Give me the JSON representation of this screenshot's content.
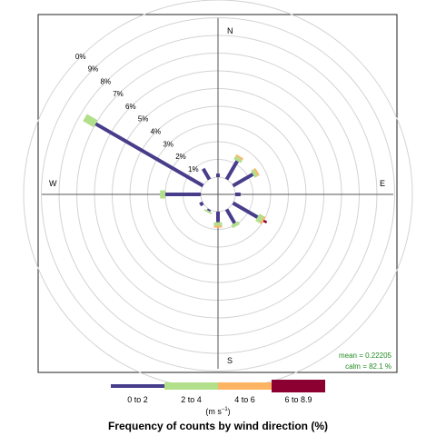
{
  "chart_data": {
    "type": "windrose",
    "title": "Frequency of counts by wind direction (%)",
    "units": "(m s",
    "units_sup": "−1",
    "units_close": ")",
    "compass": {
      "n": "N",
      "e": "E",
      "s": "S",
      "w": "W"
    },
    "radial_ticks": [
      "1%",
      "2%",
      "3%",
      "4%",
      "5%",
      "6%",
      "7%",
      "8%",
      "9%",
      "0%"
    ],
    "radial_max": 10,
    "stats": {
      "mean": "mean  =  0.22205",
      "calm": "calm  =  82.1 %"
    },
    "calm_pct": 82.1,
    "bins": [
      {
        "label": "0 to 2",
        "color": "#483D8B"
      },
      {
        "label": "2 to 4",
        "color": "#B2DF8A"
      },
      {
        "label": "4 to 6",
        "color": "#FDB462"
      },
      {
        "label": "6 to 8.9",
        "color": "#8B0030"
      }
    ],
    "directions": [
      {
        "deg": 0,
        "values": [
          0.2,
          0.0,
          0.0,
          0.0
        ]
      },
      {
        "deg": 30,
        "values": [
          1.2,
          0.2,
          0.1,
          0.0
        ]
      },
      {
        "deg": 60,
        "values": [
          1.3,
          0.2,
          0.1,
          0.0
        ]
      },
      {
        "deg": 90,
        "values": [
          0.3,
          0.0,
          0.0,
          0.0
        ]
      },
      {
        "deg": 120,
        "values": [
          1.6,
          0.3,
          0.1,
          0.2
        ]
      },
      {
        "deg": 150,
        "values": [
          0.9,
          0.2,
          0.0,
          0.0
        ]
      },
      {
        "deg": 180,
        "values": [
          0.6,
          0.2,
          0.1,
          0.0
        ]
      },
      {
        "deg": 210,
        "values": [
          0.1,
          0.1,
          0.0,
          0.0
        ]
      },
      {
        "deg": 240,
        "values": [
          0.2,
          0.0,
          0.0,
          0.0
        ]
      },
      {
        "deg": 270,
        "values": [
          2.0,
          0.3,
          0.0,
          0.0
        ]
      },
      {
        "deg": 300,
        "values": [
          7.0,
          0.7,
          0.0,
          0.0
        ]
      },
      {
        "deg": 330,
        "values": [
          0.7,
          0.0,
          0.0,
          0.0
        ]
      }
    ]
  }
}
